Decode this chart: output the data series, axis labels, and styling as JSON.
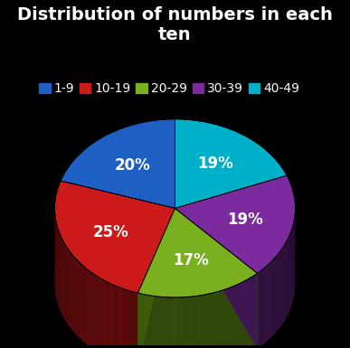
{
  "title": "Distribution of numbers in each\nten",
  "labels": [
    "1-9",
    "10-19",
    "20-29",
    "30-39",
    "40-49"
  ],
  "values": [
    20,
    25,
    17,
    19,
    19
  ],
  "colors": [
    "#1e5fc4",
    "#cc1a1a",
    "#7ab020",
    "#7b2b9e",
    "#00afc8"
  ],
  "dark_colors": [
    "#0f3070",
    "#6e0a0a",
    "#3d5c0a",
    "#3d1550",
    "#005a78"
  ],
  "background": "#000000",
  "text_color": "#ffffff",
  "title_fontsize": 14,
  "legend_fontsize": 10,
  "label_fontsize": 12,
  "startangle": 90,
  "depth": 0.22
}
